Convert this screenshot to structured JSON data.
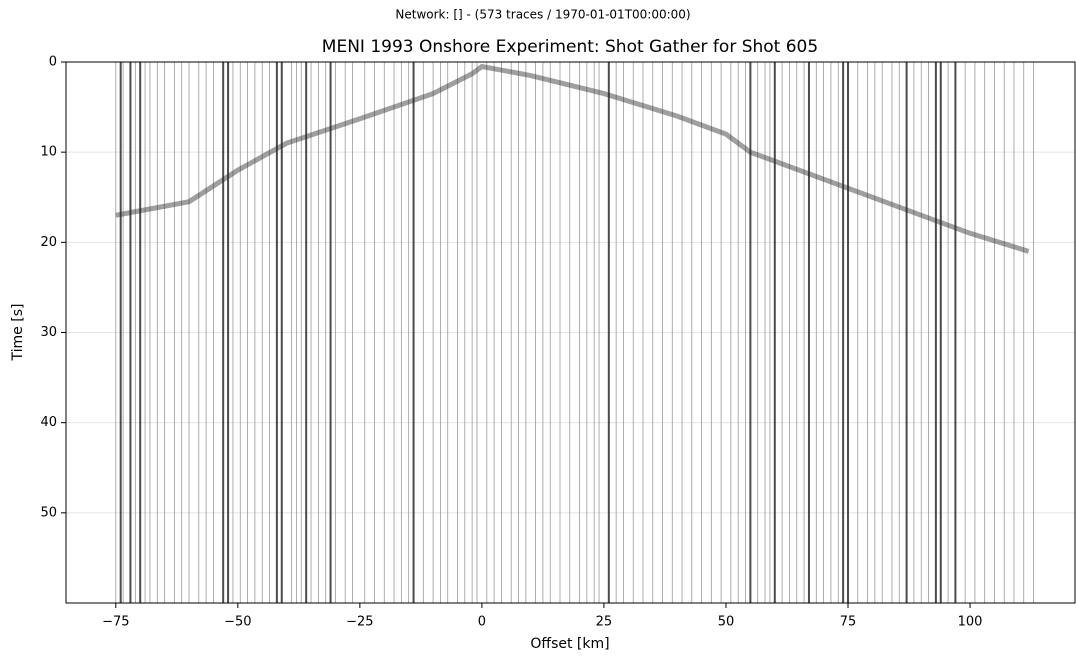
{
  "chart_data": {
    "type": "section",
    "suptitle": "Network:  [] - (573 traces / 1970-01-01T00:00:00)",
    "title": "MENI 1993 Onshore Experiment: Shot Gather for Shot 605",
    "xlabel": "Offset [km]",
    "ylabel": "Time [s]",
    "xlim": [
      -85.2,
      121.5
    ],
    "ylim": [
      0,
      60
    ],
    "y_inverted": true,
    "xticks": [
      {
        "value": -75,
        "label": "−75"
      },
      {
        "value": -50,
        "label": "−50"
      },
      {
        "value": -25,
        "label": "−25"
      },
      0,
      25,
      50,
      75,
      100
    ],
    "yticks": [
      0,
      10,
      20,
      30,
      40,
      50
    ],
    "grid": true,
    "trace_color": "#9a9a9a",
    "dark_trace_color": "#1e1e1e",
    "traces": [
      -75,
      -73.5,
      -71,
      -69,
      -68,
      -66.5,
      -65,
      -63,
      -61.5,
      -60,
      -58,
      -56.5,
      -55,
      -51,
      -49.5,
      -48,
      -46.5,
      -45,
      -43.5,
      -39,
      -38,
      -37,
      -35,
      -33.5,
      -32,
      -30,
      -28,
      -26.5,
      -24,
      -22,
      -20,
      -18,
      -16.5,
      -15,
      -12,
      -10,
      -8.5,
      -7,
      -5,
      -3.5,
      -2,
      -1,
      1,
      2.5,
      4,
      6,
      7.5,
      9,
      11,
      12.5,
      14,
      16,
      18,
      20,
      21.5,
      23,
      24,
      27.5,
      29,
      31,
      33,
      35,
      37,
      39,
      41,
      43,
      45,
      47,
      49,
      51,
      52.5,
      54,
      56.5,
      58,
      59,
      61.5,
      63,
      64.5,
      66,
      68.5,
      70,
      71.5,
      73,
      77,
      79,
      80.5,
      82,
      84,
      85.5,
      88.5,
      90,
      91.5,
      95.5,
      99,
      101,
      103,
      105,
      107,
      109,
      111,
      113
    ],
    "dark_traces": [
      -74,
      -72,
      -70,
      -53,
      -52,
      -42,
      -41,
      -36,
      -31,
      -14,
      26,
      55,
      60,
      67,
      74,
      75,
      87,
      93,
      94,
      97
    ],
    "arrival": {
      "color": "#2a2a2a",
      "x": [
        -75,
        -60,
        -50,
        -40,
        -25,
        -10,
        -2,
        0,
        10,
        25,
        40,
        50,
        55,
        75,
        100,
        112
      ],
      "values": [
        17,
        15.5,
        12,
        9,
        6.3,
        3.5,
        1.3,
        0.5,
        1.5,
        3.5,
        6,
        8,
        10,
        14,
        19,
        21
      ]
    }
  }
}
